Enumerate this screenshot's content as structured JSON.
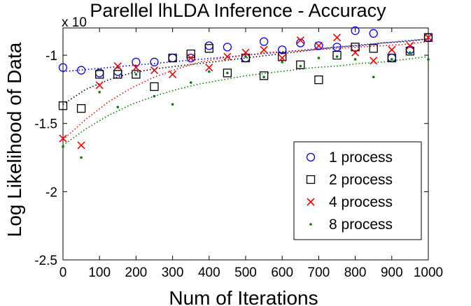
{
  "chart_data": {
    "type": "scatter",
    "title": "Parellel lhLDA Inference - Accuracy",
    "xlabel": "Num of Iterations",
    "ylabel": "Log Likelihood of Data",
    "exponent_label": "x 10",
    "xlim": [
      0,
      1000
    ],
    "ylim": [
      -2.5,
      -0.8
    ],
    "xticks": [
      0,
      100,
      200,
      300,
      400,
      500,
      600,
      700,
      800,
      900,
      1000
    ],
    "xtick_labels": [
      "0",
      "100",
      "200",
      "300",
      "400",
      "500",
      "600",
      "700",
      "800",
      "900",
      "1000"
    ],
    "yticks": [
      -2.5,
      -2,
      -1.5,
      -1
    ],
    "ytick_labels": [
      "-2.5",
      "-2",
      "-1.5",
      "-1"
    ],
    "legend_position": "lower-right",
    "x": [
      0,
      50,
      100,
      150,
      200,
      250,
      300,
      350,
      400,
      450,
      500,
      550,
      600,
      650,
      700,
      750,
      800,
      850,
      900,
      950,
      1000
    ],
    "series": [
      {
        "name": "1 process",
        "marker": "circle",
        "color": "#0000ff",
        "values": [
          -1.09,
          -1.11,
          -1.13,
          -1.12,
          -1.05,
          -1.05,
          -1.02,
          -1.02,
          -0.93,
          -0.94,
          -1.02,
          -0.9,
          -0.96,
          -0.91,
          -0.93,
          -0.94,
          -0.82,
          -0.84,
          -1.02,
          -0.96,
          -0.87
        ],
        "trend": [
          -1.12,
          -1.105,
          -1.09,
          -1.075,
          -1.06,
          -1.045,
          -1.03,
          -1.015,
          -1.0,
          -0.985,
          -0.97,
          -0.955,
          -0.94,
          -0.925,
          -0.91,
          -0.895,
          -0.88
        ]
      },
      {
        "name": "2 process",
        "marker": "square",
        "color": "#000000",
        "values": [
          -1.37,
          -1.39,
          -1.14,
          -1.14,
          -1.14,
          -1.23,
          -1.02,
          -0.99,
          -0.95,
          -1.13,
          -1.02,
          -1.15,
          -1.01,
          -1.07,
          -1.18,
          -1.0,
          -0.94,
          -0.95,
          -1.02,
          -0.97,
          -0.87
        ],
        "trend": [
          -1.36,
          -1.25,
          -1.18,
          -1.13,
          -1.1,
          -1.08,
          -1.06,
          -1.04,
          -1.02,
          -1.0,
          -0.98,
          -0.96,
          -0.94,
          -0.93,
          -0.91,
          -0.9,
          -0.88
        ]
      },
      {
        "name": "4 process",
        "marker": "x",
        "color": "#ff0000",
        "values": [
          -1.61,
          -1.66,
          -1.22,
          -1.08,
          -1.09,
          -1.11,
          -1.14,
          -1.02,
          -1.09,
          -1.01,
          -0.98,
          -0.96,
          -1.02,
          -0.89,
          -0.93,
          -0.87,
          -0.98,
          -1.04,
          -0.96,
          -0.93,
          -0.87
        ],
        "trend": [
          -1.62,
          -1.47,
          -1.34,
          -1.24,
          -1.16,
          -1.1,
          -1.05,
          -1.02,
          -1.0,
          -0.98,
          -0.97,
          -0.96,
          -0.95,
          -0.94,
          -0.93,
          -0.92,
          -0.9
        ]
      },
      {
        "name": "8 process",
        "marker": "dot",
        "color": "#008000",
        "values": [
          -1.67,
          -1.75,
          -1.27,
          -1.38,
          -1.14,
          -1.3,
          -1.36,
          -1.2,
          -1.12,
          -1.13,
          -1.01,
          -1.16,
          -1.05,
          -1.08,
          -1.02,
          -1.01,
          -1.03,
          -1.16,
          -1.03,
          -0.98,
          -1.03
        ],
        "trend": [
          -1.66,
          -1.54,
          -1.44,
          -1.36,
          -1.3,
          -1.25,
          -1.21,
          -1.18,
          -1.15,
          -1.13,
          -1.11,
          -1.09,
          -1.08,
          -1.06,
          -1.05,
          -1.03,
          -1.01
        ]
      }
    ],
    "trend_x": [
      0,
      62.5,
      125,
      187.5,
      250,
      312.5,
      375,
      437.5,
      500,
      562.5,
      625,
      687.5,
      750,
      812.5,
      875,
      937.5,
      1000
    ]
  }
}
